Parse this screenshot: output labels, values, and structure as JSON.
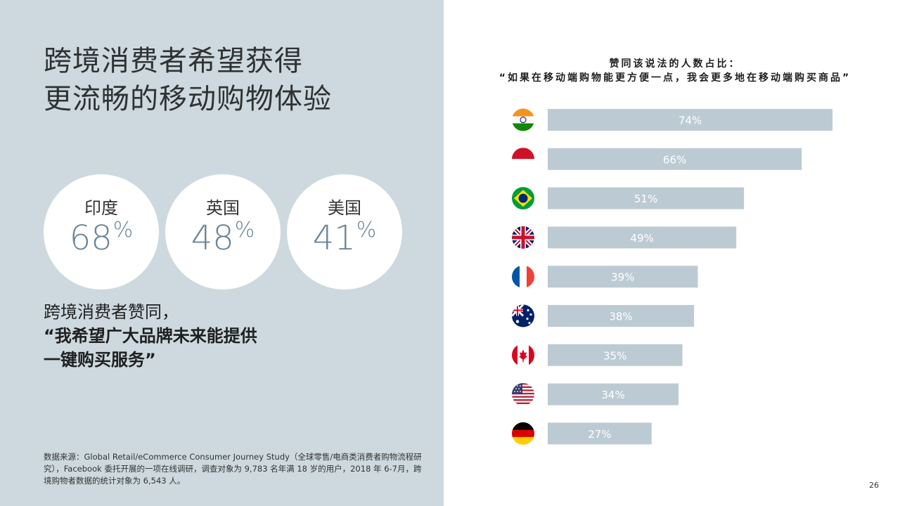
{
  "left_panel": {
    "title_lines": [
      "跨境消费者希望获得",
      "更流畅的移动购物体验"
    ],
    "circles": [
      {
        "country": "印度",
        "value": "68",
        "unit": "%"
      },
      {
        "country": "英国",
        "value": "48",
        "unit": "%"
      },
      {
        "country": "美国",
        "value": "41",
        "unit": "%"
      }
    ],
    "quote_lines": [
      "跨境消费者赞同，",
      "“我希望广大品牌未来能提供",
      "一键购买服务”"
    ],
    "source_text": "数据来源：Global Retail/eCommerce Consumer Journey Study（全球零售/电商类消费者购物流程研究），Facebook 委托开展的一项在线调研，调查对象为 9,783 名年满 18 岁的用户，2018 年 6-7月，跨境购物者数据的统计对象为 6,543 人。"
  },
  "page_number": "26",
  "colors": {
    "left_bg": "#cdd9df",
    "bar": "#bccbd3",
    "bar_label": "#ffffff",
    "circle_number": "#6a8597"
  },
  "chart_data": {
    "type": "bar",
    "orientation": "horizontal",
    "title_line1": "赞同该说法的人数占比：",
    "title_line2": "“如果在移动端购物能更方便一点，我会更多地在移动端购买商品”",
    "categories": [
      "India",
      "Indonesia",
      "Brazil",
      "United Kingdom",
      "France",
      "Australia",
      "Canada",
      "United States",
      "Germany"
    ],
    "flags": [
      "india-flag-icon",
      "indonesia-flag-icon",
      "brazil-flag-icon",
      "uk-flag-icon",
      "france-flag-icon",
      "australia-flag-icon",
      "canada-flag-icon",
      "usa-flag-icon",
      "germany-flag-icon"
    ],
    "values": [
      74,
      66,
      51,
      49,
      39,
      38,
      35,
      34,
      27
    ],
    "value_suffix": "%",
    "xlim": [
      0,
      100
    ]
  }
}
